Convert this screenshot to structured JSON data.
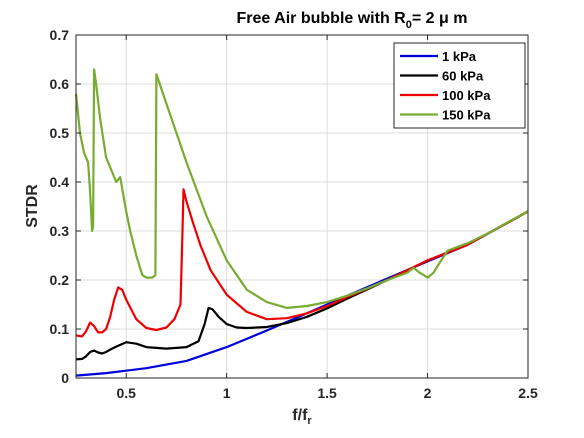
{
  "chart_data": {
    "type": "line",
    "title": "Free Air bubble with R",
    "title_sub": "0",
    "title_rest": "= 2 μ m",
    "xlabel": "f/f",
    "xlabel_sub": "r",
    "ylabel": "STDR",
    "xlim": [
      0.25,
      2.5
    ],
    "ylim": [
      0,
      0.7
    ],
    "xticks": [
      0.5,
      1,
      1.5,
      2,
      2.5
    ],
    "xtick_labels": [
      "0.5",
      "1",
      "1.5",
      "2",
      "2.5"
    ],
    "yticks": [
      0,
      0.1,
      0.2,
      0.3,
      0.4,
      0.5,
      0.6,
      0.7
    ],
    "ytick_labels": [
      "0",
      "0.1",
      "0.2",
      "0.3",
      "0.4",
      "0.5",
      "0.6",
      "0.7"
    ],
    "grid": true,
    "legend_position": "top-right",
    "series": [
      {
        "name": "1 kPa",
        "color": "#0000dd",
        "x": [
          0.25,
          0.4,
          0.6,
          0.8,
          1.0,
          1.2,
          1.4,
          1.6,
          1.8,
          2.0,
          2.2,
          2.5
        ],
        "y": [
          0.005,
          0.01,
          0.02,
          0.035,
          0.063,
          0.097,
          0.132,
          0.168,
          0.203,
          0.238,
          0.272,
          0.34
        ]
      },
      {
        "name": "60 kPa",
        "color": "#000000",
        "x": [
          0.25,
          0.28,
          0.3,
          0.32,
          0.34,
          0.36,
          0.38,
          0.4,
          0.42,
          0.45,
          0.5,
          0.55,
          0.6,
          0.7,
          0.8,
          0.86,
          0.89,
          0.91,
          0.93,
          0.96,
          1.0,
          1.05,
          1.1,
          1.2,
          1.3,
          1.4,
          1.5,
          1.6,
          1.8,
          2.0,
          2.2,
          2.5
        ],
        "y": [
          0.038,
          0.039,
          0.044,
          0.053,
          0.056,
          0.052,
          0.05,
          0.053,
          0.058,
          0.064,
          0.073,
          0.07,
          0.063,
          0.06,
          0.063,
          0.075,
          0.11,
          0.143,
          0.14,
          0.125,
          0.11,
          0.103,
          0.102,
          0.104,
          0.112,
          0.125,
          0.142,
          0.162,
          0.2,
          0.24,
          0.272,
          0.34
        ]
      },
      {
        "name": "100 kPa",
        "color": "#ee0000",
        "x": [
          0.25,
          0.28,
          0.3,
          0.32,
          0.34,
          0.36,
          0.38,
          0.4,
          0.42,
          0.44,
          0.46,
          0.48,
          0.5,
          0.55,
          0.6,
          0.65,
          0.7,
          0.74,
          0.77,
          0.78,
          0.785,
          0.8,
          0.83,
          0.87,
          0.92,
          1.0,
          1.1,
          1.2,
          1.3,
          1.4,
          1.5,
          1.6,
          1.8,
          2.0,
          2.2,
          2.5
        ],
        "y": [
          0.087,
          0.085,
          0.095,
          0.113,
          0.106,
          0.093,
          0.093,
          0.1,
          0.125,
          0.16,
          0.185,
          0.18,
          0.16,
          0.12,
          0.102,
          0.098,
          0.103,
          0.12,
          0.15,
          0.3,
          0.385,
          0.36,
          0.32,
          0.27,
          0.22,
          0.17,
          0.135,
          0.12,
          0.122,
          0.132,
          0.147,
          0.165,
          0.2,
          0.24,
          0.272,
          0.34
        ]
      },
      {
        "name": "150 kPa",
        "color": "#77ac30",
        "x": [
          0.25,
          0.27,
          0.29,
          0.31,
          0.32,
          0.33,
          0.335,
          0.34,
          0.35,
          0.37,
          0.4,
          0.43,
          0.45,
          0.47,
          0.5,
          0.52,
          0.55,
          0.58,
          0.6,
          0.63,
          0.645,
          0.65,
          0.7,
          0.8,
          0.9,
          1.0,
          1.1,
          1.2,
          1.3,
          1.4,
          1.5,
          1.6,
          1.7,
          1.8,
          1.9,
          1.93,
          1.96,
          2.0,
          2.03,
          2.06,
          2.1,
          2.2,
          2.3,
          2.4,
          2.5
        ],
        "y": [
          0.58,
          0.5,
          0.46,
          0.44,
          0.38,
          0.3,
          0.31,
          0.63,
          0.6,
          0.53,
          0.45,
          0.42,
          0.4,
          0.41,
          0.34,
          0.3,
          0.25,
          0.21,
          0.205,
          0.205,
          0.21,
          0.62,
          0.56,
          0.44,
          0.33,
          0.24,
          0.18,
          0.155,
          0.143,
          0.147,
          0.155,
          0.168,
          0.183,
          0.2,
          0.215,
          0.225,
          0.215,
          0.205,
          0.215,
          0.235,
          0.26,
          0.275,
          0.295,
          0.318,
          0.34
        ]
      }
    ]
  }
}
